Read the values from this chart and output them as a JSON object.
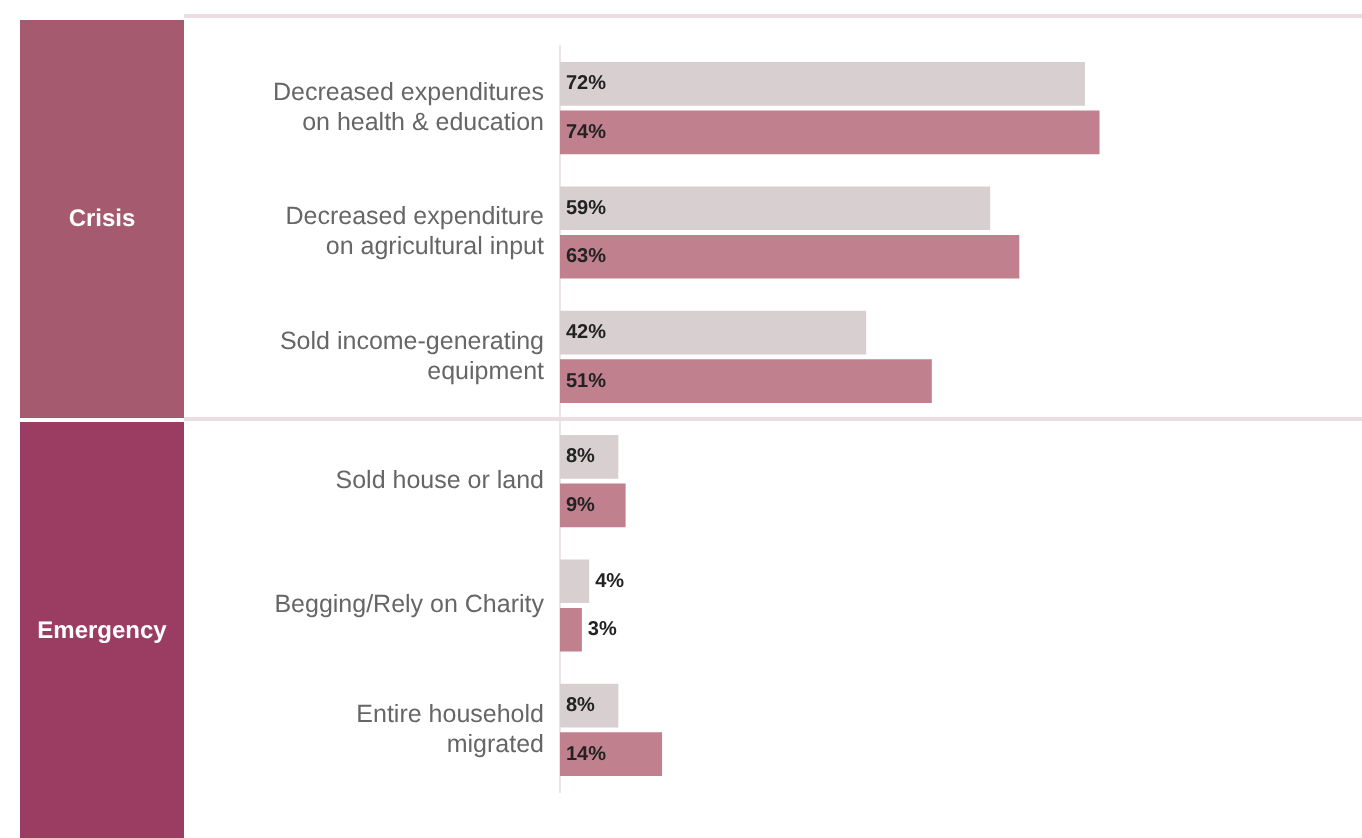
{
  "chart_data": {
    "type": "bar",
    "orientation": "horizontal",
    "categories": [
      "Decreased expenditures on health & education",
      "Decreased expenditure on agricultural input",
      "Sold income-generating equipment",
      "Sold house or land",
      "Begging/Rely on Charity",
      "Entire household migrated"
    ],
    "series": [
      {
        "color": "#d8cfd1",
        "values": [
          72,
          59,
          42,
          8,
          4,
          8
        ],
        "value_labels": [
          "72%",
          "59%",
          "42%",
          "8%",
          "4%",
          "8%"
        ]
      },
      {
        "color": "#c0808e",
        "values": [
          74,
          63,
          51,
          9,
          3,
          14
        ],
        "value_labels": [
          "74%",
          "63%",
          "51%",
          "9%",
          "3%",
          "14%"
        ]
      }
    ],
    "xlim": [
      0,
      110
    ],
    "tick_labels": "y",
    "grid": false,
    "legend": false,
    "annotations": [
      "Crisis",
      "Emergency"
    ]
  }
}
